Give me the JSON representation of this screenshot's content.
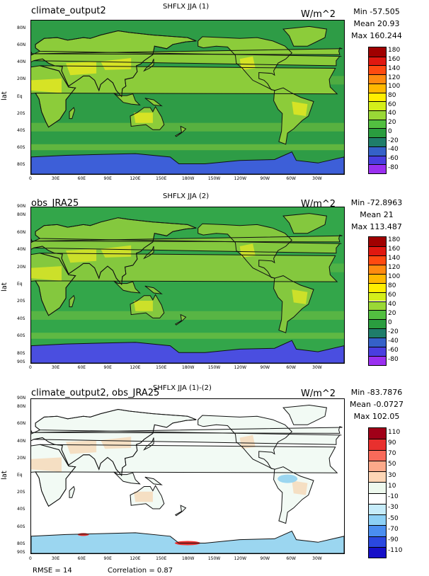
{
  "panels": [
    {
      "label": "climate_output2",
      "title": "SHFLX JJA (1)",
      "units": "W/m^2",
      "stats": [
        "Min -57.505",
        "Mean 20.93",
        "Max 160.244"
      ],
      "ocean_color": "#2e9c46",
      "land_color": "#8ccc3a",
      "accent_color": "#e8e820",
      "ice_color": "#3d5fd8",
      "colorbar": {
        "labels": [
          "180",
          "160",
          "140",
          "120",
          "100",
          "80",
          "60",
          "40",
          "20",
          "0",
          "-20",
          "-40",
          "-60",
          "-80"
        ],
        "colors": [
          "#a00000",
          "#e01810",
          "#ff4a10",
          "#ff8a10",
          "#ffb800",
          "#ffee00",
          "#d4ee1a",
          "#9ad836",
          "#52bf40",
          "#2a9d3f",
          "#1f7d6a",
          "#3561c8",
          "#4a3ee0",
          "#9a30f0"
        ]
      }
    },
    {
      "label": "obs_JRA25",
      "title": "SHFLX JJA (2)",
      "units": "W/m^2",
      "stats": [
        "Min -72.8963",
        "Mean 21",
        "Max 113.487"
      ],
      "ocean_color": "#33a64a",
      "land_color": "#84c83e",
      "accent_color": "#dfe625",
      "ice_color": "#4a4ee0",
      "colorbar": {
        "labels": [
          "180",
          "160",
          "140",
          "120",
          "100",
          "80",
          "60",
          "40",
          "20",
          "0",
          "-20",
          "-40",
          "-60",
          "-80"
        ],
        "colors": [
          "#a00000",
          "#e01810",
          "#ff4a10",
          "#ff8a10",
          "#ffb800",
          "#ffee00",
          "#d4ee1a",
          "#9ad836",
          "#52bf40",
          "#2a9d3f",
          "#1f7d6a",
          "#3561c8",
          "#4a3ee0",
          "#9a30f0"
        ]
      }
    },
    {
      "label": "climate_output2, obs_JRA25",
      "title": "SHFLX JJA (1)-(2)",
      "units": "W/m^2",
      "stats": [
        "Min -83.7876",
        "Mean -0.0727",
        "Max 102.05"
      ],
      "ocean_color": "#ffffff",
      "land_color": "#f2faf4",
      "accent_color": "#f8c89a",
      "ice_color": "#9bd6f0",
      "colorbar": {
        "labels": [
          "110",
          "90",
          "70",
          "50",
          "30",
          "10",
          "-10",
          "-30",
          "-50",
          "-70",
          "-90",
          "-110"
        ],
        "colors": [
          "#a00018",
          "#e8302e",
          "#f86a5a",
          "#fba98a",
          "#fdd6b6",
          "#eef9ee",
          "#ffffff",
          "#c6ecfa",
          "#8cd0f6",
          "#4a8ef0",
          "#2a48e0",
          "#1610c8"
        ]
      }
    }
  ],
  "axis": {
    "ylabel": "lat",
    "lat_ticks": [
      "90N",
      "80N",
      "60N",
      "40N",
      "20N",
      "Eq",
      "20S",
      "40S",
      "60S",
      "80S",
      "90S"
    ],
    "lon_ticks": [
      "0",
      "30E",
      "60E",
      "90E",
      "120E",
      "150E",
      "180W",
      "150W",
      "120W",
      "90W",
      "60W",
      "30W"
    ]
  },
  "footer": {
    "rmse": "RMSE = 14",
    "correlation": "Correlation = 0.87"
  }
}
